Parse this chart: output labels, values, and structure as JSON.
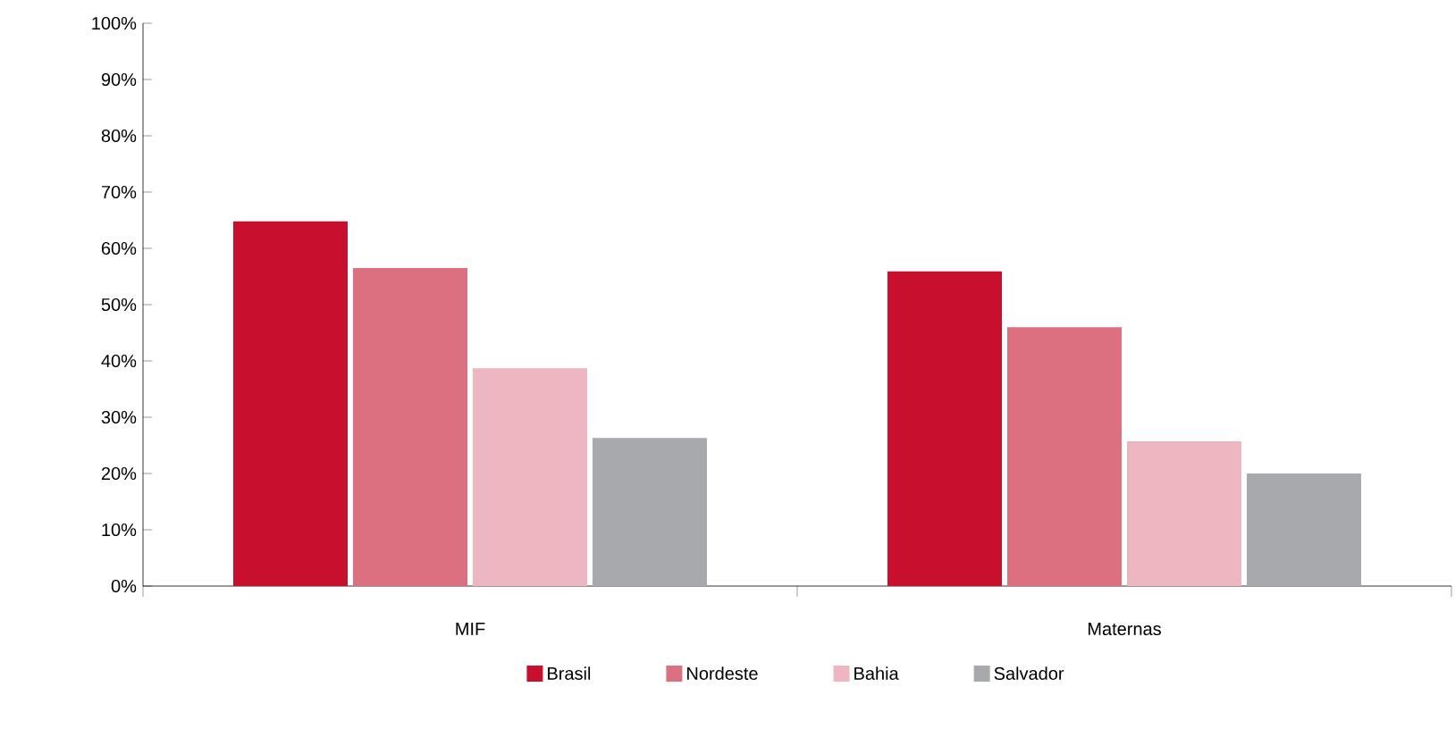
{
  "chart_data": {
    "type": "bar",
    "categories": [
      "MIF",
      "Maternas"
    ],
    "series": [
      {
        "name": "Brasil",
        "color": "#c8102e",
        "values": [
          64.8,
          55.9
        ]
      },
      {
        "name": "Nordeste",
        "color": "#dc7080",
        "values": [
          56.5,
          46.0
        ]
      },
      {
        "name": "Bahia",
        "color": "#edb6c0",
        "values": [
          38.7,
          25.7
        ]
      },
      {
        "name": "Salvador",
        "color": "#a7a9ac",
        "values": [
          26.3,
          20.0
        ]
      }
    ],
    "ylim": [
      0,
      100
    ],
    "yticks": [
      {
        "value": 0,
        "label": "0%"
      },
      {
        "value": 10,
        "label": "10%"
      },
      {
        "value": 20,
        "label": "20%"
      },
      {
        "value": 30,
        "label": "30%"
      },
      {
        "value": 40,
        "label": "40%"
      },
      {
        "value": 50,
        "label": "50%"
      },
      {
        "value": 60,
        "label": "60%"
      },
      {
        "value": 70,
        "label": "70%"
      },
      {
        "value": 80,
        "label": "80%"
      },
      {
        "value": 90,
        "label": "90%"
      },
      {
        "value": 100,
        "label": "100%"
      }
    ],
    "grid": false,
    "legend": "bottom"
  }
}
